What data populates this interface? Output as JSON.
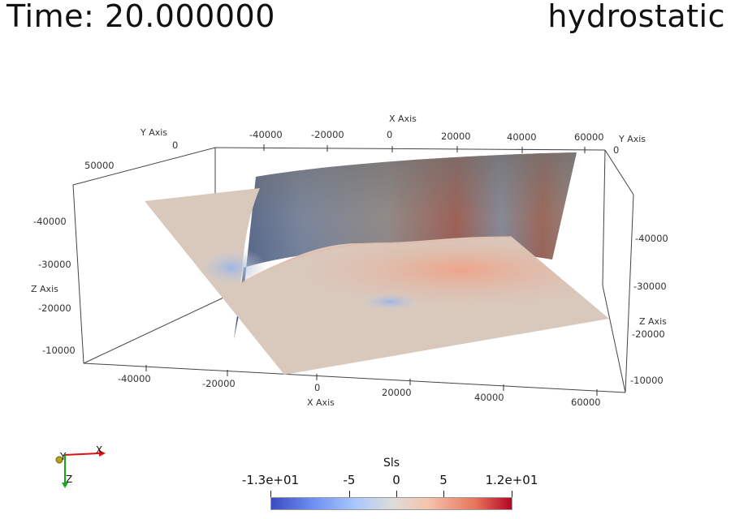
{
  "header": {
    "time_label": "Time: 20.000000",
    "case_label": "hydrostatic"
  },
  "axes": {
    "x_axis_label": "X Axis",
    "y_axis_label": "Y Axis",
    "z_axis_label": "Z Axis",
    "top_x_ticks": [
      "-40000",
      "-20000",
      "0",
      "20000",
      "40000",
      "60000"
    ],
    "bottom_x_ticks": [
      "-40000",
      "-20000",
      "0",
      "20000",
      "40000",
      "60000"
    ],
    "left_y_ticks": [
      "0",
      "50000"
    ],
    "right_y_ticks": [
      "0"
    ],
    "left_z_ticks": [
      "-40000",
      "-30000",
      "-20000",
      "-10000"
    ],
    "right_z_ticks": [
      "-40000",
      "-30000",
      "-20000",
      "-10000"
    ]
  },
  "orientation": {
    "x": "X",
    "y": "Y",
    "z": "Z"
  },
  "colorbar": {
    "title": "Sls",
    "ticks": [
      "-1.3e+01",
      "-5",
      "0",
      "5",
      "1.2e+01"
    ],
    "colors": [
      "#3b4cc0",
      "#dddcdc",
      "#b40426"
    ]
  }
}
